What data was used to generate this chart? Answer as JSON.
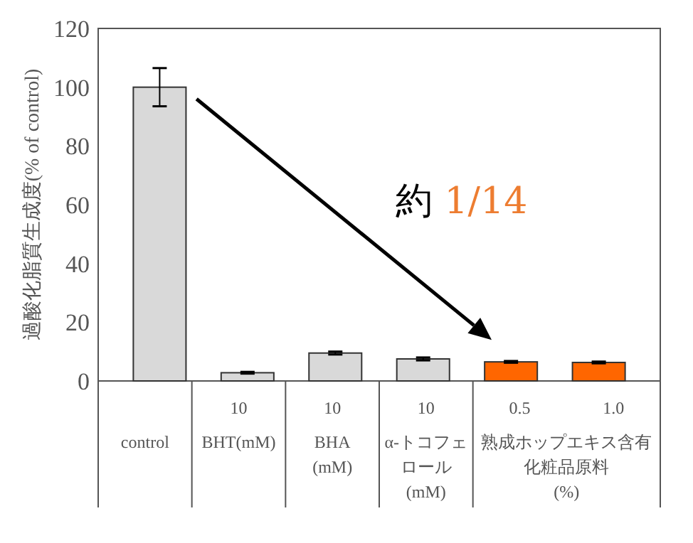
{
  "chart_data": {
    "type": "bar",
    "ylabel": "過酸化脂質生成度(% of control)",
    "categories": [
      null,
      "10",
      "10",
      "10",
      "0.5",
      "1.0"
    ],
    "values": [
      100,
      2.8,
      9.5,
      7.5,
      6.5,
      6.3
    ],
    "errors": [
      6.5,
      0.3,
      0.5,
      0.5,
      0.3,
      0.3
    ],
    "colors": [
      "#d9d9d9",
      "#d9d9d9",
      "#d9d9d9",
      "#d9d9d9",
      "#ff6600",
      "#ff6600"
    ],
    "ylim": [
      0,
      120
    ],
    "yticks": [
      0,
      20,
      40,
      60,
      80,
      100,
      120
    ],
    "grid": false,
    "annotations": [
      "control",
      "BHT(mM)",
      "BHA\n(mM)",
      "α-トコフェロール(mM)",
      "熟成ホップエキス含有化粧品原料(%)",
      "約 1/14"
    ]
  }
}
